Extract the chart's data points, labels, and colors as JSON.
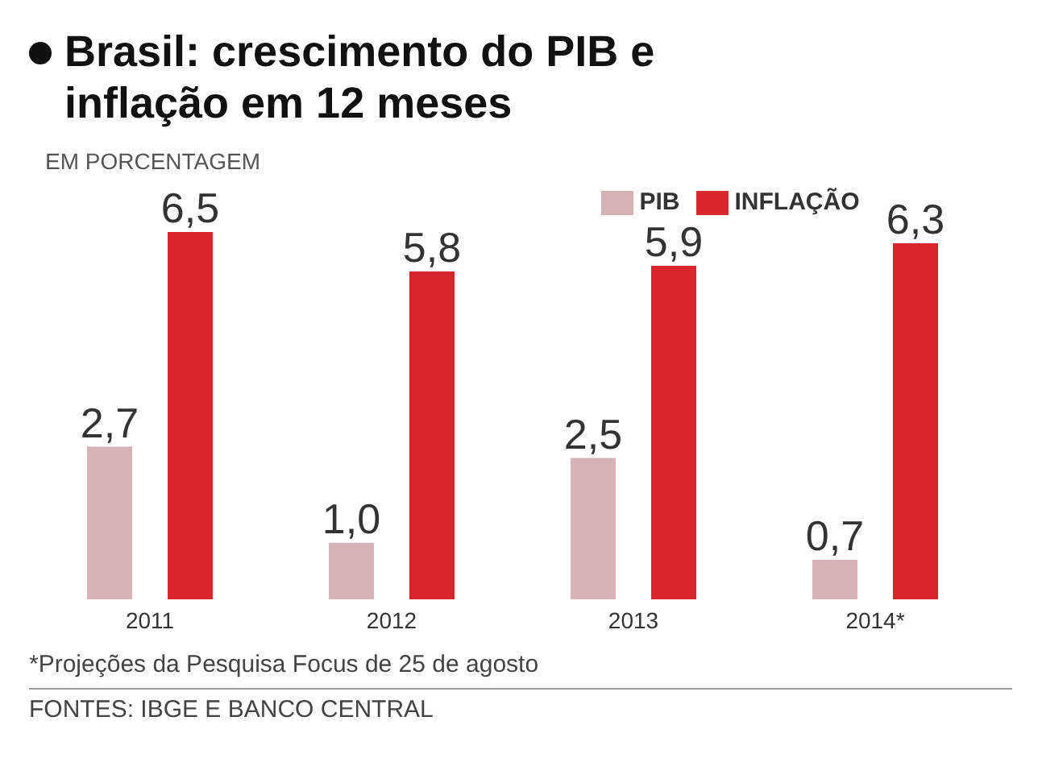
{
  "chart_data": {
    "type": "bar",
    "title": "Brasil: crescimento do PIB e inflação em 12 meses",
    "subtitle": "EM PORCENTAGEM",
    "categories": [
      "2011",
      "2012",
      "2013",
      "2014*"
    ],
    "series": [
      {
        "name": "PIB",
        "color": "#d4b3b6",
        "values": [
          2.7,
          1.0,
          2.5,
          0.7
        ],
        "value_labels": [
          "2,7",
          "1,0",
          "2,5",
          "0,7"
        ]
      },
      {
        "name": "INFLAÇÃO",
        "color": "#d9262b",
        "values": [
          6.5,
          5.8,
          5.9,
          6.3
        ],
        "value_labels": [
          "6,5",
          "5,8",
          "5,9",
          "6,3"
        ]
      }
    ],
    "legend": "top",
    "annotations": [
      "*Projeções da Pesquisa Focus de 25 de agosto",
      "FONTES: IBGE E BANCO CENTRAL"
    ]
  }
}
